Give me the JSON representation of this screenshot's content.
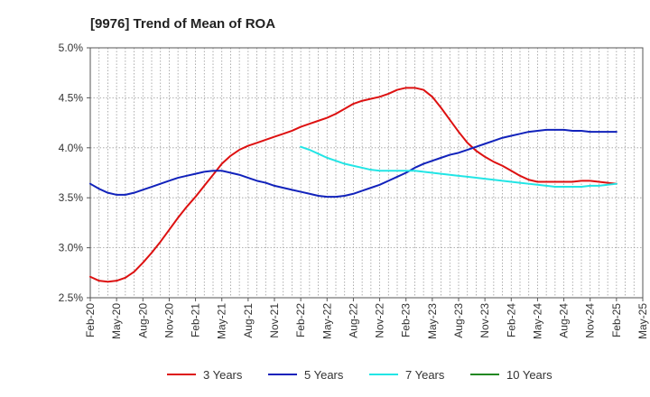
{
  "chart_data": {
    "type": "line",
    "title": "[9976]  Trend of Mean of ROA",
    "xlabel": "",
    "ylabel": "",
    "ylim": [
      2.5,
      5.0
    ],
    "y_ticks": [
      2.5,
      3.0,
      3.5,
      4.0,
      4.5,
      5.0
    ],
    "y_tick_labels": [
      "2.5%",
      "3.0%",
      "3.5%",
      "4.0%",
      "4.5%",
      "5.0%"
    ],
    "x_range_months": [
      0,
      63
    ],
    "x_tick_labels": [
      "Feb-20",
      "May-20",
      "Aug-20",
      "Nov-20",
      "Feb-21",
      "May-21",
      "Aug-21",
      "Nov-21",
      "Feb-22",
      "May-22",
      "Aug-22",
      "Nov-22",
      "Feb-23",
      "May-23",
      "Aug-23",
      "Nov-23",
      "Feb-24",
      "May-24",
      "Aug-24",
      "Nov-24",
      "Feb-25",
      "May-25"
    ],
    "grid": true,
    "legend_position": "bottom",
    "series": [
      {
        "name": "3 Years",
        "color": "#dd1111",
        "x": [
          0,
          1,
          2,
          3,
          4,
          5,
          6,
          7,
          8,
          9,
          10,
          11,
          12,
          13,
          14,
          15,
          16,
          17,
          18,
          19,
          20,
          21,
          22,
          23,
          24,
          25,
          26,
          27,
          28,
          29,
          30,
          31,
          32,
          33,
          34,
          35,
          36,
          37,
          38,
          39,
          40,
          41,
          42,
          43,
          44,
          45,
          46,
          47,
          48,
          49,
          50,
          51,
          52,
          53,
          54,
          55,
          56,
          57,
          58,
          59,
          60
        ],
        "values": [
          2.71,
          2.67,
          2.66,
          2.67,
          2.7,
          2.76,
          2.85,
          2.95,
          3.06,
          3.18,
          3.3,
          3.41,
          3.51,
          3.62,
          3.73,
          3.84,
          3.92,
          3.98,
          4.02,
          4.05,
          4.08,
          4.11,
          4.14,
          4.17,
          4.21,
          4.24,
          4.27,
          4.3,
          4.34,
          4.39,
          4.44,
          4.47,
          4.49,
          4.51,
          4.54,
          4.58,
          4.6,
          4.6,
          4.58,
          4.51,
          4.4,
          4.28,
          4.16,
          4.05,
          3.97,
          3.91,
          3.86,
          3.82,
          3.77,
          3.72,
          3.68,
          3.66,
          3.66,
          3.66,
          3.66,
          3.66,
          3.67,
          3.67,
          3.66,
          3.65,
          3.64
        ]
      },
      {
        "name": "5 Years",
        "color": "#1122bb",
        "x": [
          0,
          1,
          2,
          3,
          4,
          5,
          6,
          7,
          8,
          9,
          10,
          11,
          12,
          13,
          14,
          15,
          16,
          17,
          18,
          19,
          20,
          21,
          22,
          23,
          24,
          25,
          26,
          27,
          28,
          29,
          30,
          31,
          32,
          33,
          34,
          35,
          36,
          37,
          38,
          39,
          40,
          41,
          42,
          43,
          44,
          45,
          46,
          47,
          48,
          49,
          50,
          51,
          52,
          53,
          54,
          55,
          56,
          57,
          58,
          59,
          60
        ],
        "values": [
          3.64,
          3.59,
          3.55,
          3.53,
          3.53,
          3.55,
          3.58,
          3.61,
          3.64,
          3.67,
          3.7,
          3.72,
          3.74,
          3.76,
          3.77,
          3.77,
          3.75,
          3.73,
          3.7,
          3.67,
          3.65,
          3.62,
          3.6,
          3.58,
          3.56,
          3.54,
          3.52,
          3.51,
          3.51,
          3.52,
          3.54,
          3.57,
          3.6,
          3.63,
          3.67,
          3.71,
          3.75,
          3.8,
          3.84,
          3.87,
          3.9,
          3.93,
          3.95,
          3.98,
          4.01,
          4.04,
          4.07,
          4.1,
          4.12,
          4.14,
          4.16,
          4.17,
          4.18,
          4.18,
          4.18,
          4.17,
          4.17,
          4.16,
          4.16,
          4.16,
          4.16
        ]
      },
      {
        "name": "7 Years",
        "color": "#22e5e5",
        "x": [
          24,
          25,
          26,
          27,
          28,
          29,
          30,
          31,
          32,
          33,
          34,
          35,
          36,
          37,
          38,
          39,
          40,
          41,
          42,
          43,
          44,
          45,
          46,
          47,
          48,
          49,
          50,
          51,
          52,
          53,
          54,
          55,
          56,
          57,
          58,
          59,
          60
        ],
        "values": [
          4.01,
          3.98,
          3.94,
          3.9,
          3.87,
          3.84,
          3.82,
          3.8,
          3.78,
          3.77,
          3.77,
          3.77,
          3.77,
          3.77,
          3.76,
          3.75,
          3.74,
          3.73,
          3.72,
          3.71,
          3.7,
          3.69,
          3.68,
          3.67,
          3.66,
          3.65,
          3.64,
          3.63,
          3.62,
          3.61,
          3.61,
          3.61,
          3.61,
          3.62,
          3.62,
          3.63,
          3.64
        ]
      },
      {
        "name": "10 Years",
        "color": "#228822",
        "x": [],
        "values": []
      }
    ]
  }
}
